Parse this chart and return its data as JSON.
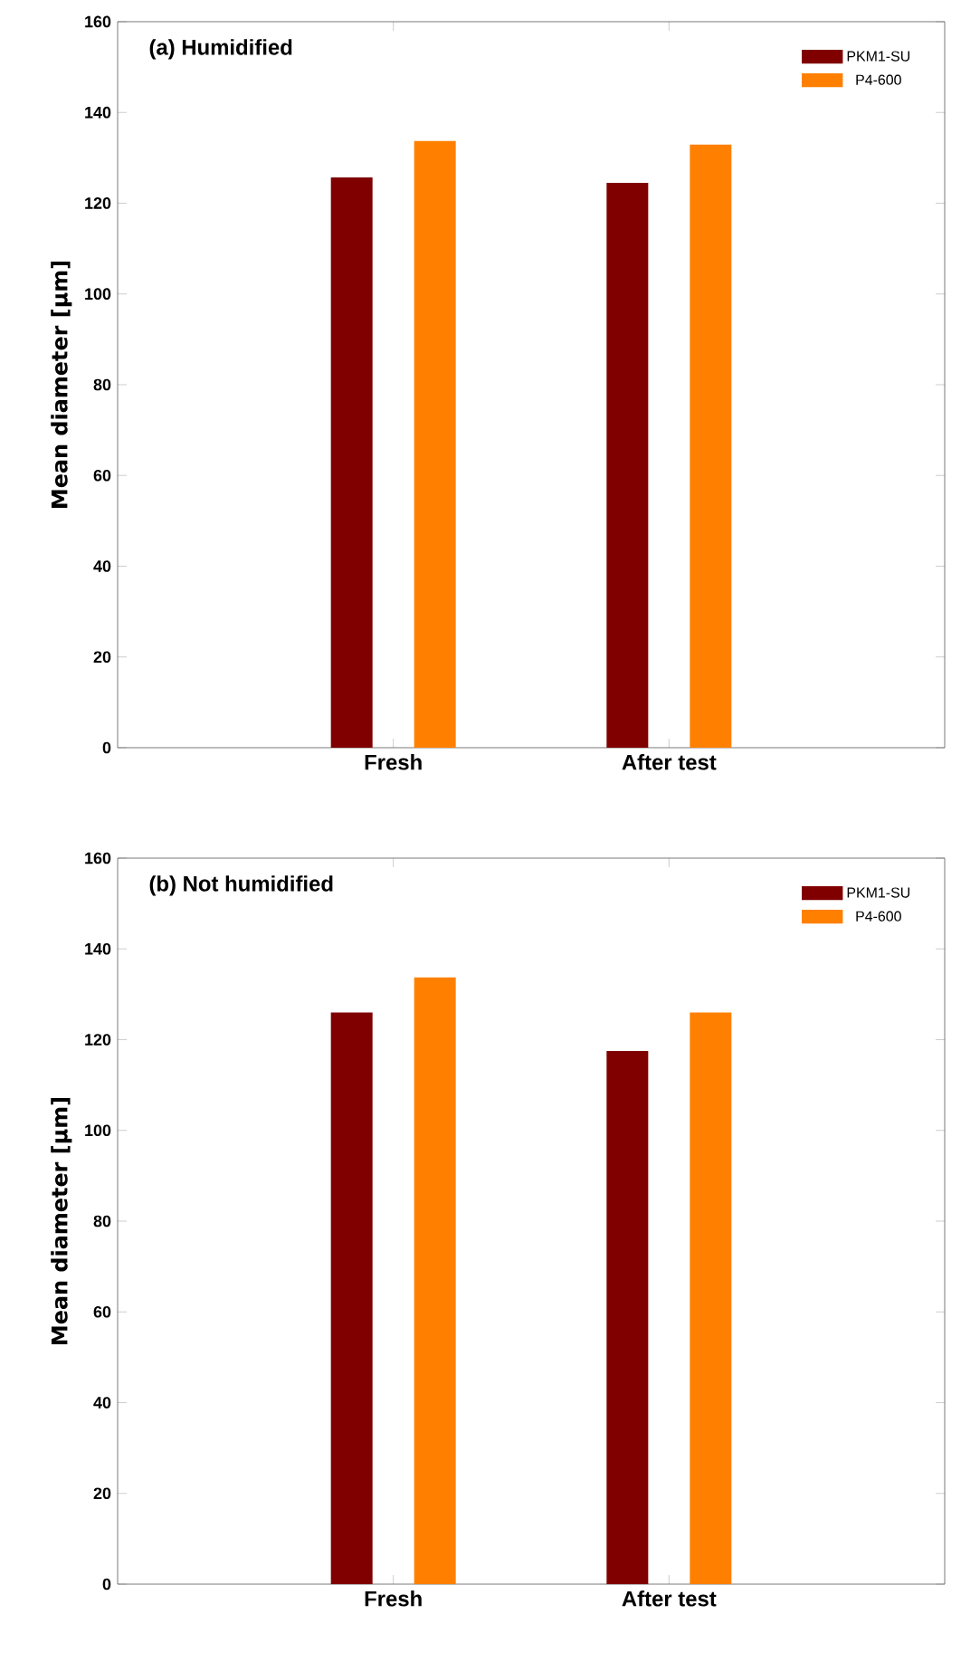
{
  "chart_data": [
    {
      "type": "bar",
      "title": "(a) Humidified",
      "ylabel": "Mean diameter [μm]",
      "categories": [
        "Fresh",
        "After test"
      ],
      "series": [
        {
          "name": "PKM1-SU",
          "color": "#800000",
          "values": [
            125.7,
            124.5
          ]
        },
        {
          "name": "P4-600",
          "color": "#ff8000",
          "values": [
            133.7,
            132.9
          ]
        }
      ],
      "ylim": [
        0,
        160
      ],
      "yticks": [
        0,
        20,
        40,
        60,
        80,
        100,
        120,
        140,
        160
      ],
      "legend": "top right"
    },
    {
      "type": "bar",
      "title": "(b) Not humidified",
      "ylabel": "Mean diameter [μm]",
      "categories": [
        "Fresh",
        "After test"
      ],
      "series": [
        {
          "name": "PKM1-SU",
          "color": "#800000",
          "values": [
            126.0,
            117.5
          ]
        },
        {
          "name": "P4-600",
          "color": "#ff8000",
          "values": [
            133.7,
            126.0
          ]
        }
      ],
      "ylim": [
        0,
        160
      ],
      "yticks": [
        0,
        20,
        40,
        60,
        80,
        100,
        120,
        140,
        160
      ],
      "legend": "top right"
    }
  ]
}
